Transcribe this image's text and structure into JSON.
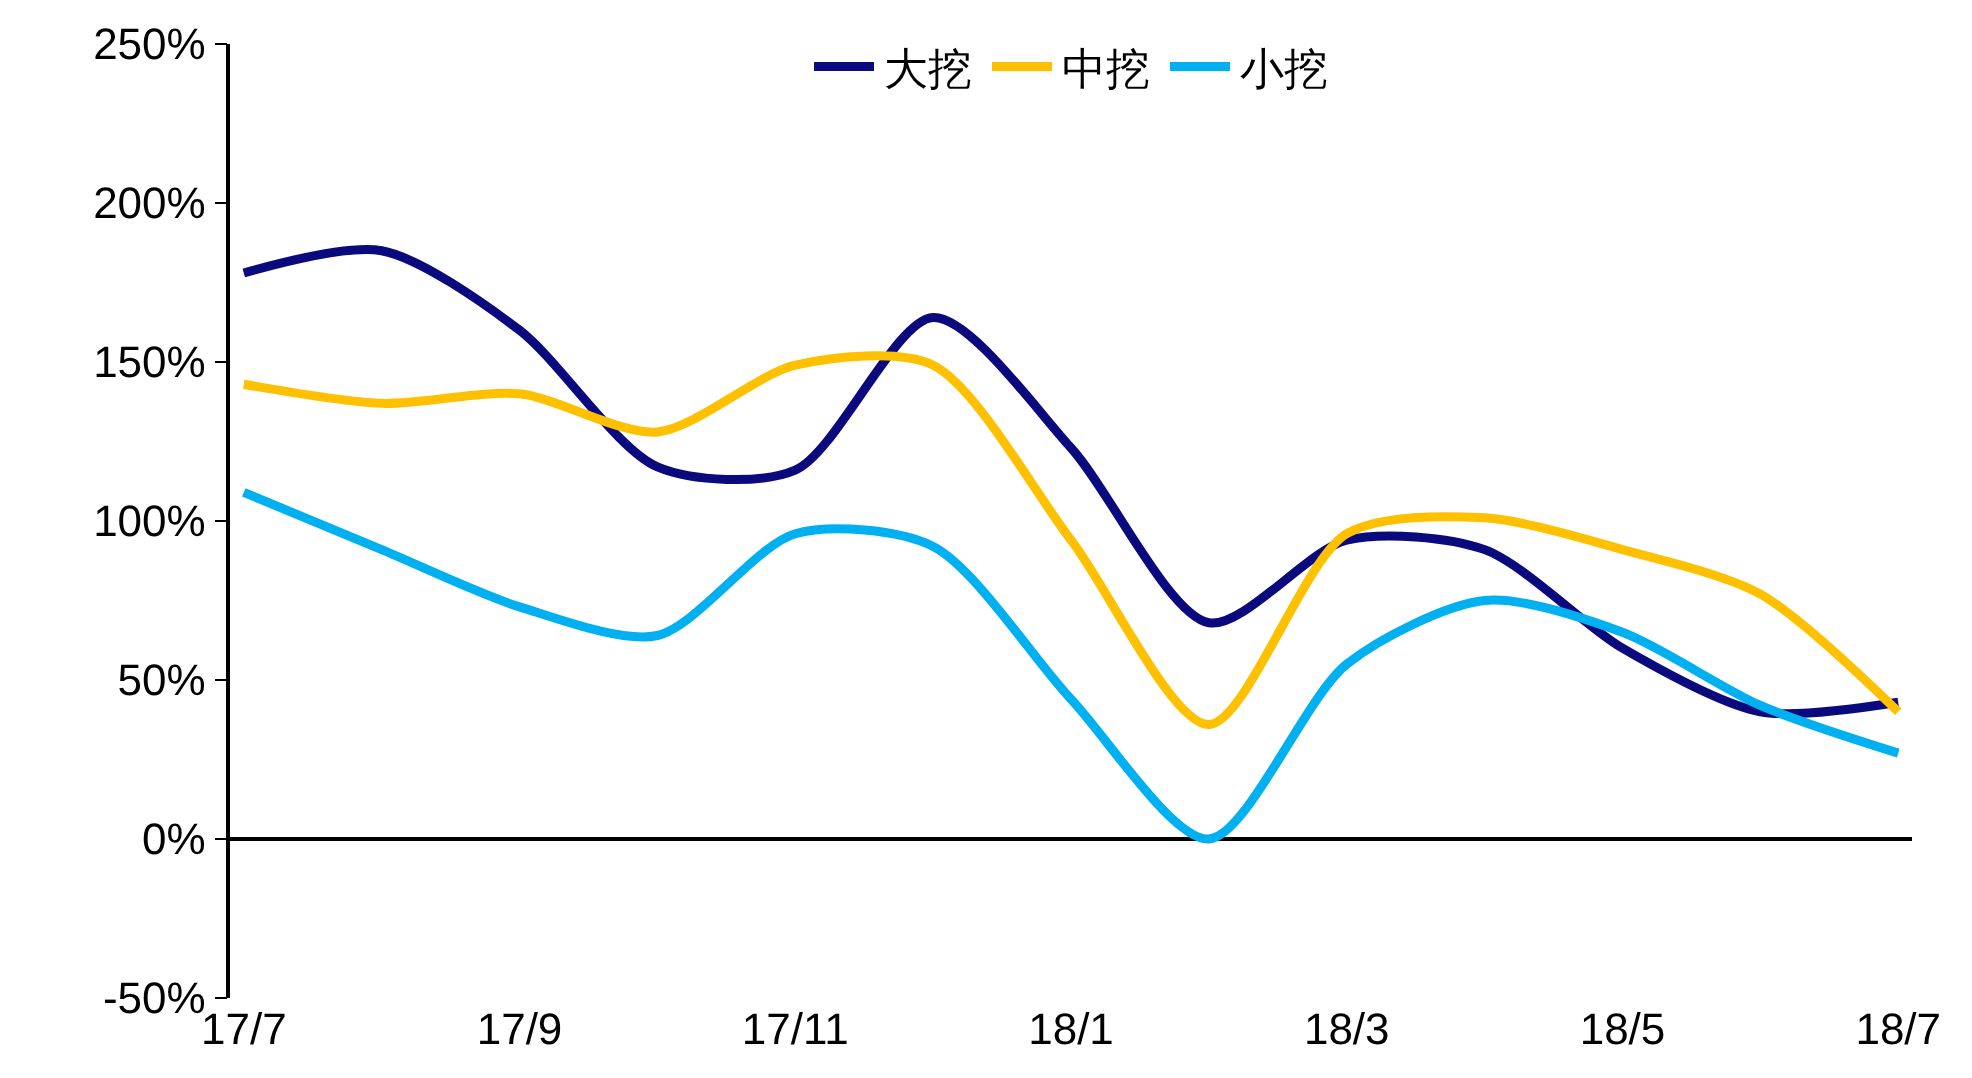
{
  "chart_data": {
    "type": "line",
    "categories": [
      "17/7",
      null,
      "17/9",
      null,
      "17/11",
      null,
      "18/1",
      null,
      "18/3",
      null,
      "18/5",
      null,
      "18/7"
    ],
    "series": [
      {
        "name": "大挖",
        "color": "#0a0a7e",
        "values": [
          178,
          185,
          160,
          117,
          116,
          164,
          123,
          68,
          94,
          91,
          60,
          40,
          43
        ]
      },
      {
        "name": "中挖",
        "color": "#ffc000",
        "values": [
          143,
          137,
          140,
          128,
          149,
          149,
          94,
          36,
          96,
          101,
          91,
          77,
          40
        ]
      },
      {
        "name": "小挖",
        "color": "#00b0f0",
        "values": [
          109,
          91,
          73,
          64,
          96,
          92,
          44,
          0,
          55,
          75,
          65,
          42,
          27
        ]
      }
    ],
    "ylim": [
      -50,
      250
    ],
    "yticks": [
      {
        "value": -50,
        "label": "-50%"
      },
      {
        "value": 0,
        "label": "0%"
      },
      {
        "value": 50,
        "label": "50%"
      },
      {
        "value": 100,
        "label": "100%"
      },
      {
        "value": 150,
        "label": "150%"
      },
      {
        "value": 200,
        "label": "200%"
      },
      {
        "value": 250,
        "label": "250%"
      }
    ],
    "legend": "top",
    "marker": "none",
    "line_style": "solid"
  }
}
